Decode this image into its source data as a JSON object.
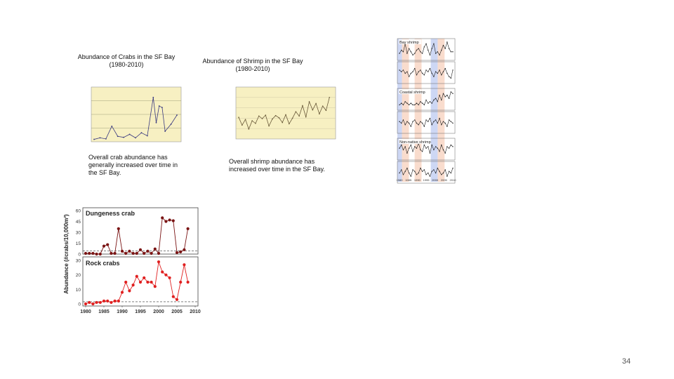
{
  "slide": {
    "crab_title": "Abundance of Crabs in the SF Bay",
    "crab_years": "(1980-2010)",
    "shrimp_title": "Abundance of Shrimp in the SF Bay",
    "shrimp_years": "(1980-2010)",
    "crab_caption": "Overall crab abundance has generally increased over time in the SF Bay.",
    "shrimp_caption": "Overall shrimp abundance has increased over time in the SF Bay.",
    "page_number": "34"
  },
  "colors": {
    "panel_bg": "#f7f0c2",
    "dungeness": "#7a1414",
    "rock": "#e02020",
    "baseline": "#333333",
    "shrimp_cool": "#b8c6f0",
    "shrimp_warm": "#f6cdb8"
  },
  "chart_data": [
    {
      "type": "line",
      "name": "crab-small",
      "ylabel": "",
      "series": [
        {
          "x": [
            1980,
            1982,
            1984,
            1986,
            1988,
            1990,
            1992,
            1994,
            1996,
            1998,
            2000,
            2001,
            2002,
            2003,
            2004,
            2006,
            2008
          ],
          "values": [
            0.2,
            0.5,
            0.3,
            2.8,
            0.8,
            0.6,
            1.2,
            0.5,
            1.5,
            0.9,
            8.5,
            3.5,
            6.8,
            6.5,
            1.8,
            3.2,
            5.0
          ]
        }
      ],
      "ylim": [
        0,
        10
      ]
    },
    {
      "type": "line",
      "name": "shrimp-small",
      "ylabel": "",
      "series": [
        {
          "x": [
            1980,
            1981,
            1982,
            1983,
            1984,
            1985,
            1986,
            1987,
            1988,
            1989,
            1990,
            1991,
            1992,
            1993,
            1994,
            1995,
            1996,
            1997,
            1998,
            1999,
            2000,
            2001,
            2002,
            2003,
            2004,
            2005,
            2006,
            2007
          ],
          "values": [
            5000,
            3200,
            4500,
            2300,
            4200,
            3600,
            5300,
            4700,
            5500,
            3000,
            4600,
            5400,
            4900,
            3800,
            5600,
            3500,
            4800,
            6300,
            5300,
            7700,
            5100,
            8600,
            6700,
            8200,
            5800,
            7600,
            6600,
            9600
          ]
        }
      ],
      "ylim": [
        0,
        12000
      ]
    },
    {
      "type": "line",
      "title": "Dungeness crab",
      "ylabel": "Abundance (#crabs/10,000m²)",
      "x_ticks": [
        "1980",
        "1985",
        "1990",
        "1995",
        "2000",
        "2005",
        "2010"
      ],
      "y_ticks": [
        "0",
        "15",
        "30",
        "45",
        "60"
      ],
      "ylim": [
        0,
        60
      ],
      "series": [
        {
          "name": "Dungeness crab",
          "x": [
            1980,
            1981,
            1982,
            1983,
            1984,
            1985,
            1986,
            1987,
            1988,
            1989,
            1990,
            1991,
            1992,
            1993,
            1994,
            1995,
            1996,
            1997,
            1998,
            1999,
            2000,
            2001,
            2002,
            2003,
            2004,
            2005,
            2006,
            2007,
            2008
          ],
          "values": [
            1,
            1,
            1,
            0,
            0,
            11,
            13,
            1,
            1,
            35,
            4,
            1,
            4,
            1,
            1,
            6,
            1,
            4,
            1,
            7,
            1,
            50,
            45,
            47,
            46,
            2,
            3,
            6,
            35
          ]
        }
      ]
    },
    {
      "type": "line",
      "title": "Rock crabs",
      "x_ticks": [
        "1980",
        "1985",
        "1990",
        "1995",
        "2000",
        "2005",
        "2010"
      ],
      "y_ticks": [
        "0",
        "10",
        "20",
        "30"
      ],
      "ylim": [
        0,
        30
      ],
      "series": [
        {
          "name": "Rock crabs",
          "x": [
            1980,
            1981,
            1982,
            1983,
            1984,
            1985,
            1986,
            1987,
            1988,
            1989,
            1990,
            1991,
            1992,
            1993,
            1994,
            1995,
            1996,
            1997,
            1998,
            1999,
            2000,
            2001,
            2002,
            2003,
            2004,
            2005,
            2006,
            2007,
            2008
          ],
          "values": [
            0,
            1,
            0,
            1,
            1,
            2,
            2,
            1,
            2,
            2,
            8,
            15,
            9,
            13,
            19,
            15,
            18,
            15,
            15,
            12,
            29,
            22,
            20,
            18,
            5,
            3,
            15,
            27,
            15
          ]
        }
      ]
    },
    {
      "type": "line",
      "title": "Bay shrimp",
      "x_ticks": [
        "1980",
        "1985",
        "1990",
        "1995",
        "2000",
        "2005",
        "2010"
      ],
      "series": [
        {
          "x": [
            1980,
            1981,
            1982,
            1983,
            1984,
            1985,
            1986,
            1987,
            1988,
            1989,
            1990,
            1991,
            1992,
            1993,
            1994,
            1995,
            1996,
            1997,
            1998,
            1999,
            2000,
            2001,
            2002,
            2003,
            2004,
            2005,
            2006,
            2007,
            2008
          ],
          "values": [
            3,
            5,
            4,
            9,
            3,
            6,
            4,
            2,
            3,
            5,
            6,
            4,
            3,
            7,
            9,
            5,
            2,
            6,
            9,
            3,
            4,
            2,
            5,
            8,
            6,
            10,
            6,
            4,
            4
          ]
        }
      ]
    },
    {
      "type": "line",
      "title": "",
      "series": [
        {
          "x": [
            1980,
            1981,
            1982,
            1983,
            1984,
            1985,
            1986,
            1987,
            1988,
            1989,
            1990,
            1991,
            1992,
            1993,
            1994,
            1995,
            1996,
            1997,
            1998,
            1999,
            2000,
            2001,
            2002,
            2003,
            2004,
            2005,
            2006,
            2007,
            2008
          ],
          "values": [
            7,
            6,
            7,
            5,
            6,
            3,
            5,
            6,
            8,
            4,
            6,
            7,
            5,
            4,
            7,
            6,
            8,
            5,
            3,
            6,
            5,
            7,
            4,
            6,
            8,
            5,
            3,
            2,
            7
          ]
        }
      ]
    },
    {
      "type": "line",
      "title": "Coastal shrimp",
      "series": [
        {
          "x": [
            1980,
            1981,
            1982,
            1983,
            1984,
            1985,
            1986,
            1987,
            1988,
            1989,
            1990,
            1991,
            1992,
            1993,
            1994,
            1995,
            1996,
            1997,
            1998,
            1999,
            2000,
            2001,
            2002,
            2003,
            2004,
            2005,
            2006,
            2007,
            2008
          ],
          "values": [
            2,
            3,
            2,
            4,
            3,
            2,
            3,
            2,
            2,
            3,
            2,
            4,
            3,
            2,
            5,
            3,
            4,
            3,
            5,
            6,
            4,
            8,
            5,
            9,
            7,
            8,
            6,
            10,
            9
          ]
        }
      ]
    },
    {
      "type": "line",
      "title": "",
      "series": [
        {
          "x": [
            1980,
            1981,
            1982,
            1983,
            1984,
            1985,
            1986,
            1987,
            1988,
            1989,
            1990,
            1991,
            1992,
            1993,
            1994,
            1995,
            1996,
            1997,
            1998,
            1999,
            2000,
            2001,
            2002,
            2003,
            2004,
            2005,
            2006,
            2007,
            2008
          ],
          "values": [
            6,
            5,
            7,
            4,
            6,
            5,
            3,
            6,
            7,
            5,
            4,
            6,
            5,
            3,
            7,
            6,
            8,
            4,
            6,
            7,
            5,
            8,
            4,
            6,
            5,
            3,
            7,
            6,
            5
          ]
        }
      ]
    },
    {
      "type": "line",
      "title": "Non-native shrimp",
      "series": [
        {
          "x": [
            1980,
            1981,
            1982,
            1983,
            1984,
            1985,
            1986,
            1987,
            1988,
            1989,
            1990,
            1991,
            1992,
            1993,
            1994,
            1995,
            1996,
            1997,
            1998,
            1999,
            2000,
            2001,
            2002,
            2003,
            2004,
            2005,
            2006,
            2007,
            2008
          ],
          "values": [
            6,
            8,
            5,
            7,
            3,
            6,
            8,
            4,
            7,
            6,
            9,
            5,
            4,
            8,
            6,
            7,
            3,
            8,
            5,
            7,
            6,
            4,
            8,
            5,
            3,
            7,
            6,
            8,
            7
          ]
        }
      ]
    },
    {
      "type": "line",
      "title": "",
      "series": [
        {
          "x": [
            1980,
            1981,
            1982,
            1983,
            1984,
            1985,
            1986,
            1987,
            1988,
            1989,
            1990,
            1991,
            1992,
            1993,
            1994,
            1995,
            1996,
            1997,
            1998,
            1999,
            2000,
            2001,
            2002,
            2003,
            2004,
            2005,
            2006,
            2007,
            2008
          ],
          "values": [
            5,
            7,
            4,
            6,
            8,
            5,
            3,
            7,
            6,
            4,
            5,
            8,
            6,
            7,
            4,
            5,
            3,
            6,
            7,
            5,
            8,
            6,
            4,
            5,
            7,
            3,
            6,
            5,
            8
          ]
        }
      ]
    }
  ]
}
